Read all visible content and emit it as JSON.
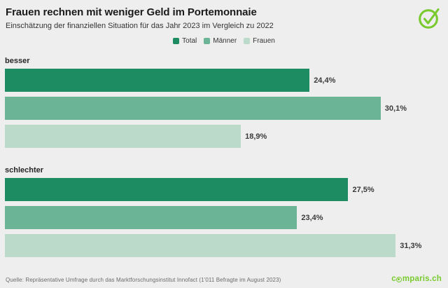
{
  "page": {
    "background": "#eeeeee"
  },
  "header": {
    "title": "Frauen rechnen mit weniger Geld im Portemonnaie",
    "subtitle": "Einschätzung der finanziellen Situation für das Jahr 2023 im Vergleich zu 2022"
  },
  "brand": {
    "green": "#79ca2e",
    "logo_text": "comparis.ch",
    "check_icon": "check-circle-icon"
  },
  "chart_data": {
    "type": "bar",
    "orientation": "horizontal",
    "title": "Frauen rechnen mit weniger Geld im Portemonnaie",
    "subtitle": "Einschätzung der finanziellen Situation für das Jahr 2023 im Vergleich zu 2022",
    "legend_position": "top-center",
    "grid": false,
    "xlim": [
      0,
      35.1
    ],
    "series_names": [
      "Total",
      "Männer",
      "Frauen"
    ],
    "series_colors": [
      "#1e8c62",
      "#6cb496",
      "#bcdaca"
    ],
    "categories": [
      "besser",
      "schlechter"
    ],
    "groups": [
      {
        "category": "besser",
        "values": [
          24.4,
          30.1,
          18.9
        ],
        "labels": [
          "24,4%",
          "30,1%",
          "18,9%"
        ]
      },
      {
        "category": "schlechter",
        "values": [
          27.5,
          23.4,
          31.3
        ],
        "labels": [
          "27,5%",
          "23,4%",
          "31,3%"
        ]
      }
    ]
  },
  "footer": {
    "source": "Quelle: Repräsentative Umfrage durch das Marktforschungsinstitut Innofact (1'011 Befragte im August 2023)"
  }
}
